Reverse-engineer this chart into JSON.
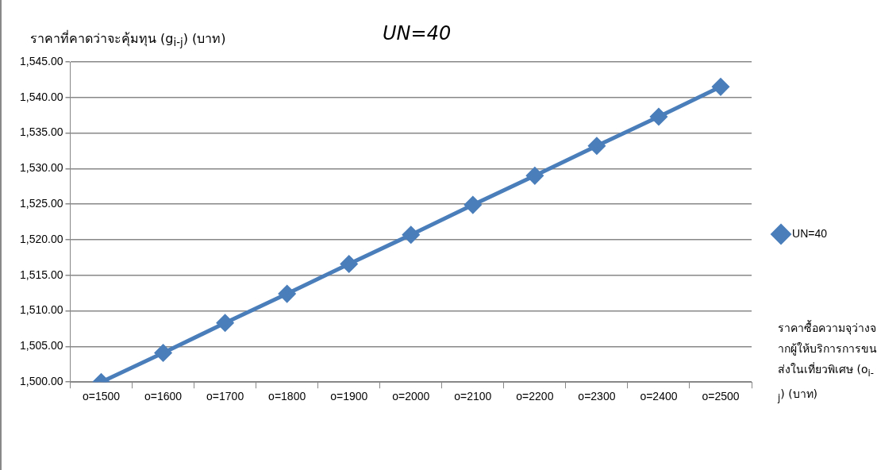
{
  "chart_data": {
    "type": "line",
    "title": "UN=40",
    "ylabel": "ราคาที่คาดว่าจะคุ้มทุน (g$_{i-j}$) (บาท)",
    "xlabel": "ราคาซื้อความจุว่างจากผู้ให้บริการการขนส่งในเที่ยวพิเศษ (o$_{i-j}$) (บาท)",
    "categories": [
      "o=1500",
      "o=1600",
      "o=1700",
      "o=1800",
      "o=1900",
      "o=2000",
      "o=2100",
      "o=2200",
      "o=2300",
      "o=2400",
      "o=2500"
    ],
    "series": [
      {
        "name": "UN=40",
        "color": "#4a7ebb",
        "values": [
          1500.0,
          1504.1,
          1508.3,
          1512.4,
          1516.6,
          1520.7,
          1524.9,
          1529.0,
          1533.2,
          1537.3,
          1541.5
        ]
      }
    ],
    "ylim": [
      1500,
      1545
    ],
    "yticks": [
      {
        "value": 1500,
        "label": "1,500.00"
      },
      {
        "value": 1505,
        "label": "1,505.00"
      },
      {
        "value": 1510,
        "label": "1,510.00"
      },
      {
        "value": 1515,
        "label": "1,515.00"
      },
      {
        "value": 1520,
        "label": "1,520.00"
      },
      {
        "value": 1525,
        "label": "1,525.00"
      },
      {
        "value": 1530,
        "label": "1,530.00"
      },
      {
        "value": 1535,
        "label": "1,535.00"
      },
      {
        "value": 1540,
        "label": "1,540.00"
      },
      {
        "value": 1545,
        "label": "1,545.00"
      }
    ],
    "grid": "y",
    "legend": "right",
    "marker": "diamond",
    "line_style": "solid"
  }
}
